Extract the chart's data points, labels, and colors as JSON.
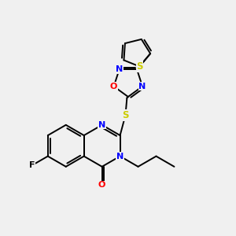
{
  "bg_color": "#f0f0f0",
  "bond_color": "#000000",
  "atom_colors": {
    "N": "#0000ff",
    "O": "#ff0000",
    "S": "#cccc00",
    "F": "#000000",
    "C": "#000000"
  },
  "lw": 1.4,
  "fs": 7.5
}
